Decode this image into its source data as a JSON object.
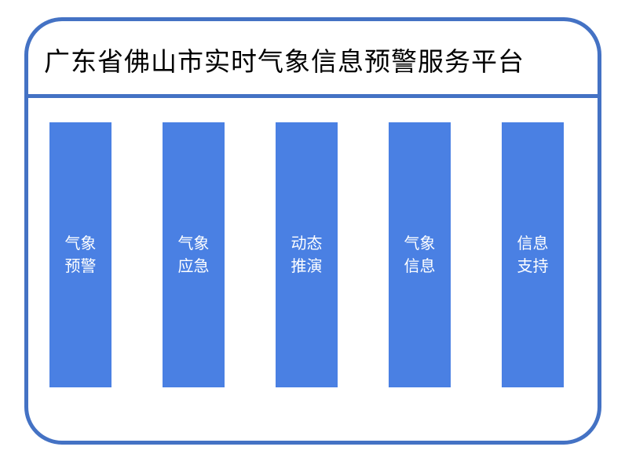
{
  "title": "广东省佛山市实时气象信息预警服务平台",
  "colors": {
    "border": "#4472c4",
    "module_fill": "#4a80e3"
  },
  "modules": [
    {
      "line1": "气象",
      "line2": "预警"
    },
    {
      "line1": "气象",
      "line2": "应急"
    },
    {
      "line1": "动态",
      "line2": "推演"
    },
    {
      "line1": "气象",
      "line2": "信息"
    },
    {
      "line1": "信息",
      "line2": "支持"
    }
  ]
}
